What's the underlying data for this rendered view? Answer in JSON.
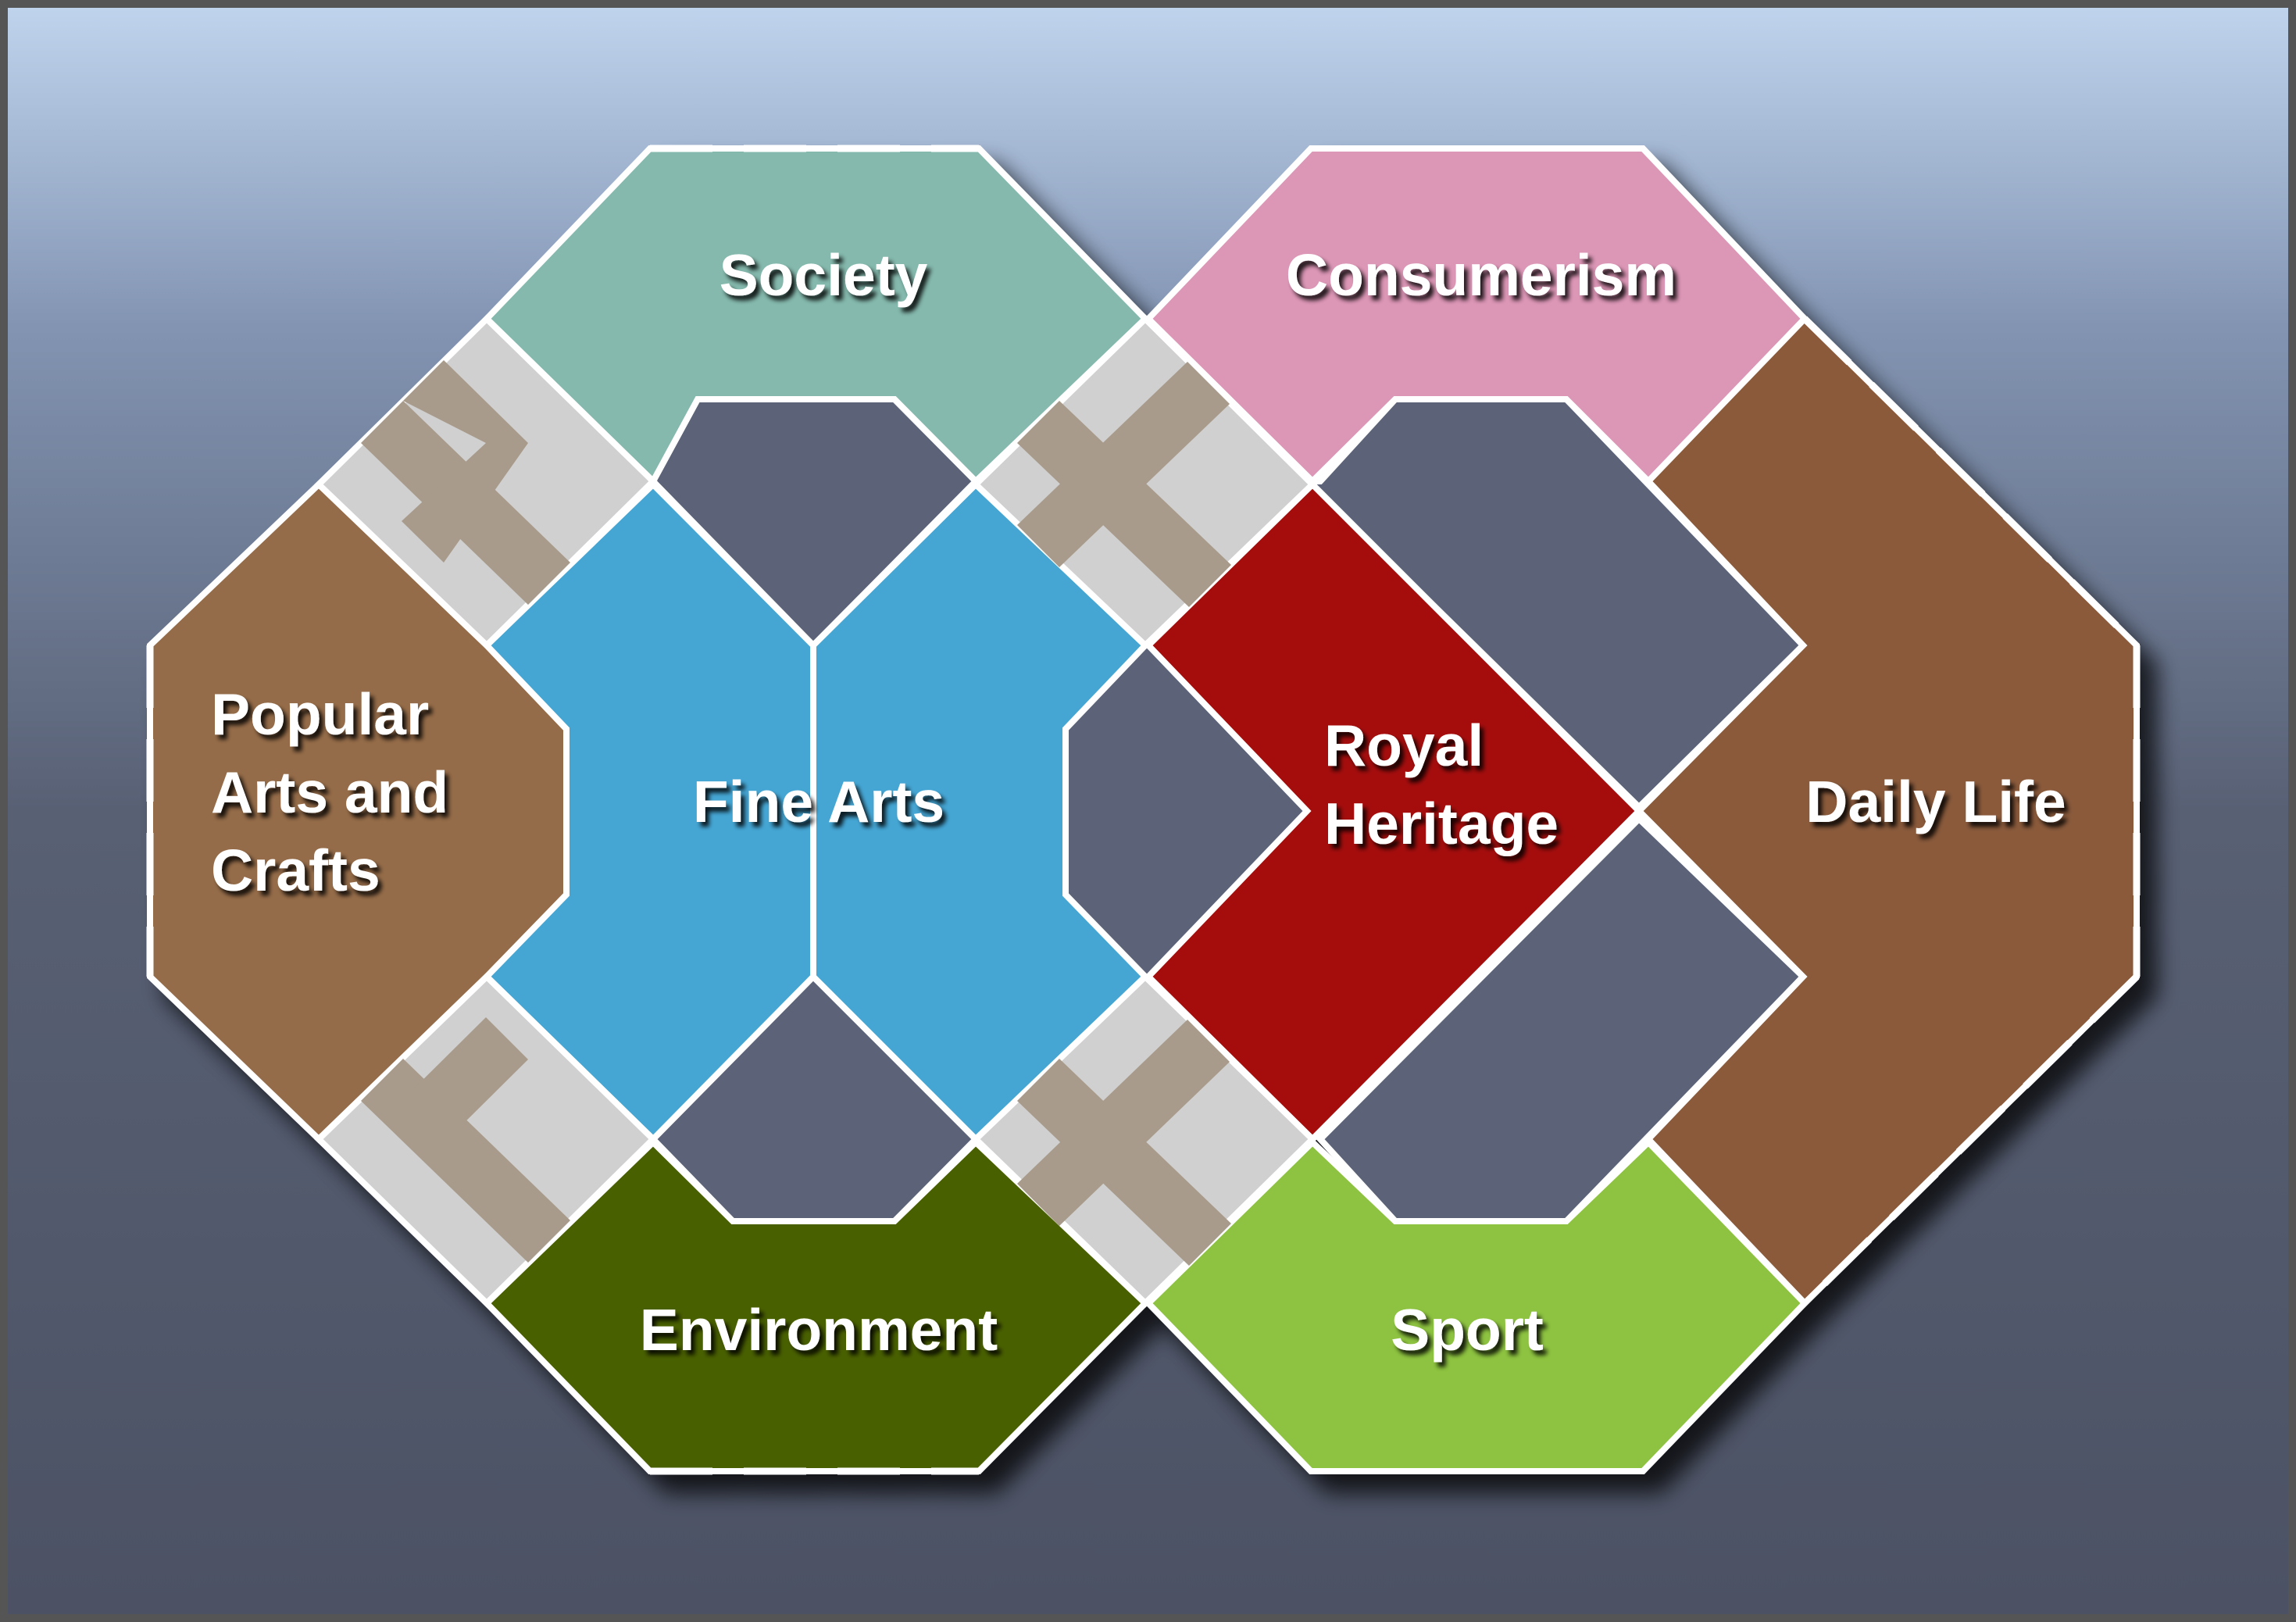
{
  "colors": {
    "background_top": "#c0d4ee",
    "background_upper": "#8294b2",
    "background_lower": "#586074",
    "background_bottom": "#4c5264",
    "outline": "#ffffff",
    "frame_border": "#555555",
    "hole": "#5b6478",
    "connector_light": "#d0d0d0",
    "connector_dark": "#a89b8b"
  },
  "zones": [
    {
      "id": "society",
      "label": "Society",
      "color": "#85b9ad"
    },
    {
      "id": "consumerism",
      "label": "Consumerism",
      "color": "#dc96b6"
    },
    {
      "id": "popular_arts",
      "label": "Popular\nArts and\nCrafts",
      "color": "#956c4a"
    },
    {
      "id": "fine_arts",
      "label": "Fine Arts",
      "color": "#45a6d4"
    },
    {
      "id": "royal_heritage",
      "label": "Royal\nHeritage",
      "color": "#a50a0a"
    },
    {
      "id": "daily_life",
      "label": "Daily Life",
      "color": "#8a5a3b"
    },
    {
      "id": "environment",
      "label": "Environment",
      "color": "#4a6105"
    },
    {
      "id": "sport",
      "label": "Sport",
      "color": "#8dc33f"
    }
  ]
}
